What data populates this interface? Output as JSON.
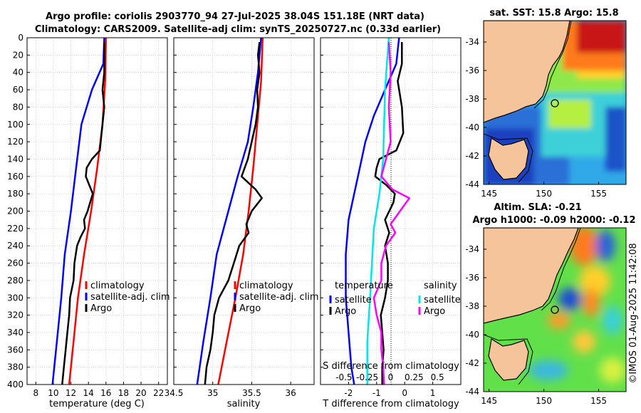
{
  "title": {
    "line1": "Argo profile: coriolis 2903770_94 27-Jul-2025 38.04S 151.18E (NRT data)",
    "line2": "Climatology: CARS2009. Satellite-adj clim: synTS_20250727.nc (0.33d earlier)"
  },
  "map_titles": {
    "sst": "sat. SST: 15.8 Argo: 15.8",
    "sla1": "Altim. SLA: -0.21",
    "sla2": "Argo h1000: -0.09 h2000: -0.12"
  },
  "credit": "©IMOS 01-Aug-2025 11:42:08",
  "colors": {
    "climatology": "#ff0000",
    "satellite": "#0000ff",
    "argo": "#000000",
    "sal_satellite": "#00e5e5",
    "sal_argo": "#ff00ff",
    "land": "#f5c49a"
  },
  "chart_data": [
    {
      "type": "line",
      "name": "temperature-profile",
      "xlabel": "temperature (deg C)",
      "ylabel": "depth (m)",
      "xlim": [
        7,
        23
      ],
      "ylim": [
        0,
        400
      ],
      "y_reversed": true,
      "xticks": [
        "8",
        "10",
        "12",
        "14",
        "16",
        "18",
        "20",
        "22"
      ],
      "yticks": [
        "0",
        "20",
        "40",
        "60",
        "80",
        "100",
        "120",
        "140",
        "160",
        "180",
        "200",
        "220",
        "240",
        "260",
        "280",
        "300",
        "320",
        "340",
        "360",
        "380",
        "400"
      ],
      "legend": [
        "climatology",
        "satellite-adj. clim",
        "Argo"
      ],
      "legend_position": "lower-right",
      "series": [
        {
          "name": "climatology",
          "color": "#ff0000",
          "points": [
            [
              16.0,
              0
            ],
            [
              15.9,
              50
            ],
            [
              15.6,
              100
            ],
            [
              15.0,
              150
            ],
            [
              14.3,
              200
            ],
            [
              13.5,
              250
            ],
            [
              12.8,
              300
            ],
            [
              12.3,
              350
            ],
            [
              11.8,
              400
            ]
          ]
        },
        {
          "name": "satellite-adj. clim",
          "color": "#0000ff",
          "points": [
            [
              15.8,
              0
            ],
            [
              15.7,
              30
            ],
            [
              14.4,
              60
            ],
            [
              13.2,
              100
            ],
            [
              12.6,
              150
            ],
            [
              12.0,
              200
            ],
            [
              11.3,
              250
            ],
            [
              10.9,
              300
            ],
            [
              10.4,
              350
            ],
            [
              9.9,
              400
            ]
          ]
        },
        {
          "name": "Argo",
          "color": "#000000",
          "points": [
            [
              15.8,
              5
            ],
            [
              15.8,
              20
            ],
            [
              15.8,
              40
            ],
            [
              15.6,
              60
            ],
            [
              15.8,
              80
            ],
            [
              15.6,
              100
            ],
            [
              15.4,
              120
            ],
            [
              15.3,
              130
            ],
            [
              14.4,
              140
            ],
            [
              13.8,
              150
            ],
            [
              13.7,
              160
            ],
            [
              14.1,
              170
            ],
            [
              14.5,
              180
            ],
            [
              14.2,
              190
            ],
            [
              13.9,
              200
            ],
            [
              13.5,
              210
            ],
            [
              13.6,
              220
            ],
            [
              13.1,
              230
            ],
            [
              12.7,
              240
            ],
            [
              12.4,
              260
            ],
            [
              12.3,
              280
            ],
            [
              11.9,
              300
            ],
            [
              11.8,
              320
            ],
            [
              11.6,
              340
            ],
            [
              11.4,
              360
            ],
            [
              11.2,
              380
            ],
            [
              11.0,
              400
            ]
          ]
        }
      ]
    },
    {
      "type": "line",
      "name": "salinity-profile",
      "xlabel": "salinity",
      "xlim": [
        34.5,
        36.3
      ],
      "ylim": [
        0,
        400
      ],
      "y_reversed": true,
      "xticks": [
        "34.5",
        "35",
        "35.5",
        "36"
      ],
      "legend": [
        "climatology",
        "satellite-adj. clim",
        "Argo"
      ],
      "legend_position": "lower-right",
      "series": [
        {
          "name": "climatology",
          "color": "#ff0000",
          "points": [
            [
              35.64,
              0
            ],
            [
              35.62,
              50
            ],
            [
              35.57,
              100
            ],
            [
              35.52,
              150
            ],
            [
              35.46,
              200
            ],
            [
              35.39,
              250
            ],
            [
              35.29,
              300
            ],
            [
              35.18,
              350
            ],
            [
              35.07,
              400
            ]
          ]
        },
        {
          "name": "satellite-adj. clim",
          "color": "#0000ff",
          "points": [
            [
              35.62,
              0
            ],
            [
              35.58,
              40
            ],
            [
              35.52,
              80
            ],
            [
              35.45,
              120
            ],
            [
              35.32,
              160
            ],
            [
              35.2,
              200
            ],
            [
              35.05,
              250
            ],
            [
              34.97,
              300
            ],
            [
              34.88,
              350
            ],
            [
              34.8,
              400
            ]
          ]
        },
        {
          "name": "Argo",
          "color": "#000000",
          "points": [
            [
              35.6,
              5
            ],
            [
              35.58,
              20
            ],
            [
              35.6,
              40
            ],
            [
              35.57,
              60
            ],
            [
              35.58,
              80
            ],
            [
              35.55,
              100
            ],
            [
              35.5,
              120
            ],
            [
              35.45,
              140
            ],
            [
              35.37,
              160
            ],
            [
              35.55,
              175
            ],
            [
              35.63,
              185
            ],
            [
              35.5,
              200
            ],
            [
              35.43,
              215
            ],
            [
              35.46,
              225
            ],
            [
              35.34,
              240
            ],
            [
              35.27,
              260
            ],
            [
              35.2,
              280
            ],
            [
              35.08,
              300
            ],
            [
              35.02,
              320
            ],
            [
              35.0,
              340
            ],
            [
              34.97,
              360
            ],
            [
              34.92,
              380
            ],
            [
              34.9,
              400
            ]
          ]
        }
      ]
    },
    {
      "type": "line",
      "name": "difference-profile",
      "xlabel": "T difference from climatology",
      "xlabel2": "S difference from climatology",
      "xlim": [
        -3,
        2
      ],
      "x2lim": [
        -0.75,
        0.75
      ],
      "ylim": [
        0,
        400
      ],
      "y_reversed": true,
      "xticks": [
        "-2",
        "-1",
        "0",
        "1"
      ],
      "x2ticks": [
        "-0.5",
        "-0.25",
        "0",
        "0.25",
        "0.5"
      ],
      "legend_temperature": {
        "title": "temperature",
        "items": [
          "satellite",
          "Argo"
        ]
      },
      "legend_salinity": {
        "title": "salinity",
        "items": [
          "satellite",
          "Argo"
        ]
      },
      "series": [
        {
          "name": "temperature satellite",
          "color": "#0000ff",
          "points": [
            [
              -0.2,
              0
            ],
            [
              -0.3,
              30
            ],
            [
              -0.7,
              60
            ],
            [
              -1.1,
              90
            ],
            [
              -1.4,
              120
            ],
            [
              -1.6,
              150
            ],
            [
              -1.8,
              180
            ],
            [
              -2.0,
              210
            ],
            [
              -2.1,
              250
            ],
            [
              -2.1,
              300
            ],
            [
              -2.0,
              340
            ],
            [
              -1.9,
              380
            ],
            [
              -1.8,
              400
            ]
          ]
        },
        {
          "name": "temperature Argo",
          "color": "#000000",
          "points": [
            [
              -0.1,
              5
            ],
            [
              -0.1,
              30
            ],
            [
              -0.25,
              50
            ],
            [
              -0.1,
              80
            ],
            [
              -0.05,
              110
            ],
            [
              -0.3,
              130
            ],
            [
              -0.9,
              140
            ],
            [
              -1.0,
              150
            ],
            [
              -1.05,
              160
            ],
            [
              -0.65,
              170
            ],
            [
              -0.35,
              180
            ],
            [
              -0.4,
              190
            ],
            [
              -0.55,
              200
            ],
            [
              -0.7,
              210
            ],
            [
              -0.55,
              225
            ],
            [
              -0.7,
              240
            ],
            [
              -0.6,
              260
            ],
            [
              -0.6,
              280
            ],
            [
              -0.7,
              300
            ],
            [
              -0.85,
              320
            ],
            [
              -0.8,
              340
            ],
            [
              -0.75,
              360
            ],
            [
              -0.8,
              380
            ],
            [
              -0.8,
              400
            ]
          ]
        },
        {
          "name": "salinity satellite",
          "color": "#00e5e5",
          "points": [
            [
              -0.02,
              0
            ],
            [
              -0.04,
              30
            ],
            [
              -0.06,
              60
            ],
            [
              -0.07,
              100
            ],
            [
              -0.08,
              140
            ],
            [
              -0.12,
              180
            ],
            [
              -0.18,
              220
            ],
            [
              -0.2,
              260
            ],
            [
              -0.22,
              300
            ],
            [
              -0.25,
              350
            ],
            [
              -0.25,
              400
            ]
          ]
        },
        {
          "name": "salinity Argo",
          "color": "#ff00ff",
          "points": [
            [
              -0.02,
              5
            ],
            [
              0.0,
              40
            ],
            [
              -0.02,
              80
            ],
            [
              0.0,
              120
            ],
            [
              -0.05,
              140
            ],
            [
              -0.1,
              160
            ],
            [
              0.02,
              175
            ],
            [
              0.2,
              185
            ],
            [
              0.1,
              200
            ],
            [
              0.0,
              215
            ],
            [
              0.05,
              225
            ],
            [
              -0.05,
              240
            ],
            [
              -0.1,
              260
            ],
            [
              -0.1,
              280
            ],
            [
              -0.18,
              300
            ],
            [
              -0.15,
              320
            ],
            [
              -0.1,
              340
            ],
            [
              -0.1,
              360
            ],
            [
              -0.08,
              380
            ],
            [
              -0.07,
              400
            ]
          ]
        }
      ]
    },
    {
      "type": "heatmap",
      "name": "sst-map",
      "title": "sat. SST: 15.8 Argo: 15.8",
      "xlim": [
        144.5,
        157.5
      ],
      "ylim": [
        -44,
        -32.5
      ],
      "xticks": [
        "145",
        "150",
        "155"
      ],
      "yticks": [
        "-34",
        "-36",
        "-38",
        "-40",
        "-42",
        "-44"
      ],
      "argo_position": [
        151.18,
        -38.04
      ]
    },
    {
      "type": "heatmap",
      "name": "sla-map",
      "title": "Altim. SLA: -0.21",
      "subtitle": "Argo h1000: -0.09 h2000: -0.12",
      "xlim": [
        144.5,
        157.5
      ],
      "ylim": [
        -44,
        -32.5
      ],
      "xticks": [
        "145",
        "150",
        "155"
      ],
      "yticks": [
        "-34",
        "-36",
        "-38",
        "-40",
        "-42",
        "-44"
      ],
      "argo_position": [
        151.18,
        -38.04
      ]
    }
  ]
}
